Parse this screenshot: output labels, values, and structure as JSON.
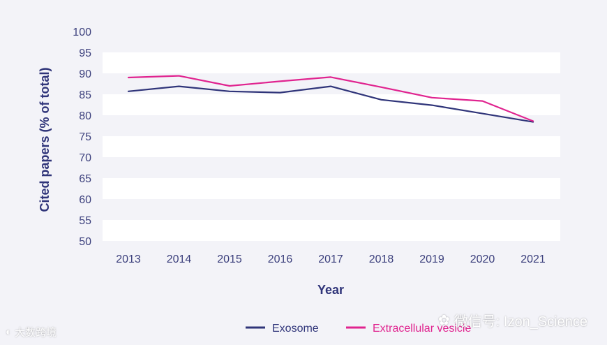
{
  "chart_data": {
    "type": "line",
    "title": "",
    "xlabel": "Year",
    "ylabel": "Cited papers (% of total)",
    "x": [
      "2013",
      "2014",
      "2015",
      "2016",
      "2017",
      "2018",
      "2019",
      "2020",
      "2021"
    ],
    "ylim": [
      50,
      100
    ],
    "yticks": [
      "100",
      "95",
      "90",
      "85",
      "80",
      "75",
      "70",
      "65",
      "60",
      "55",
      "50"
    ],
    "series": [
      {
        "name": "Exosome",
        "color": "#2f3479",
        "values": [
          85.7,
          86.9,
          85.7,
          85.4,
          86.9,
          83.7,
          82.4,
          80.4,
          78.4
        ]
      },
      {
        "name": "Extracellular vesicle",
        "color": "#e0238f",
        "values": [
          89.0,
          89.4,
          87.0,
          88.1,
          89.1,
          86.7,
          84.2,
          83.4,
          78.6
        ]
      }
    ],
    "grid": "alternating horizontal bands",
    "legend_position": "bottom"
  },
  "watermarks": {
    "right": "微信号: Izon_Science",
    "left": "大数跨境"
  },
  "colors": {
    "background": "#f3f3f8",
    "band": "#ffffff",
    "axis_text": "#3b3f7c"
  }
}
